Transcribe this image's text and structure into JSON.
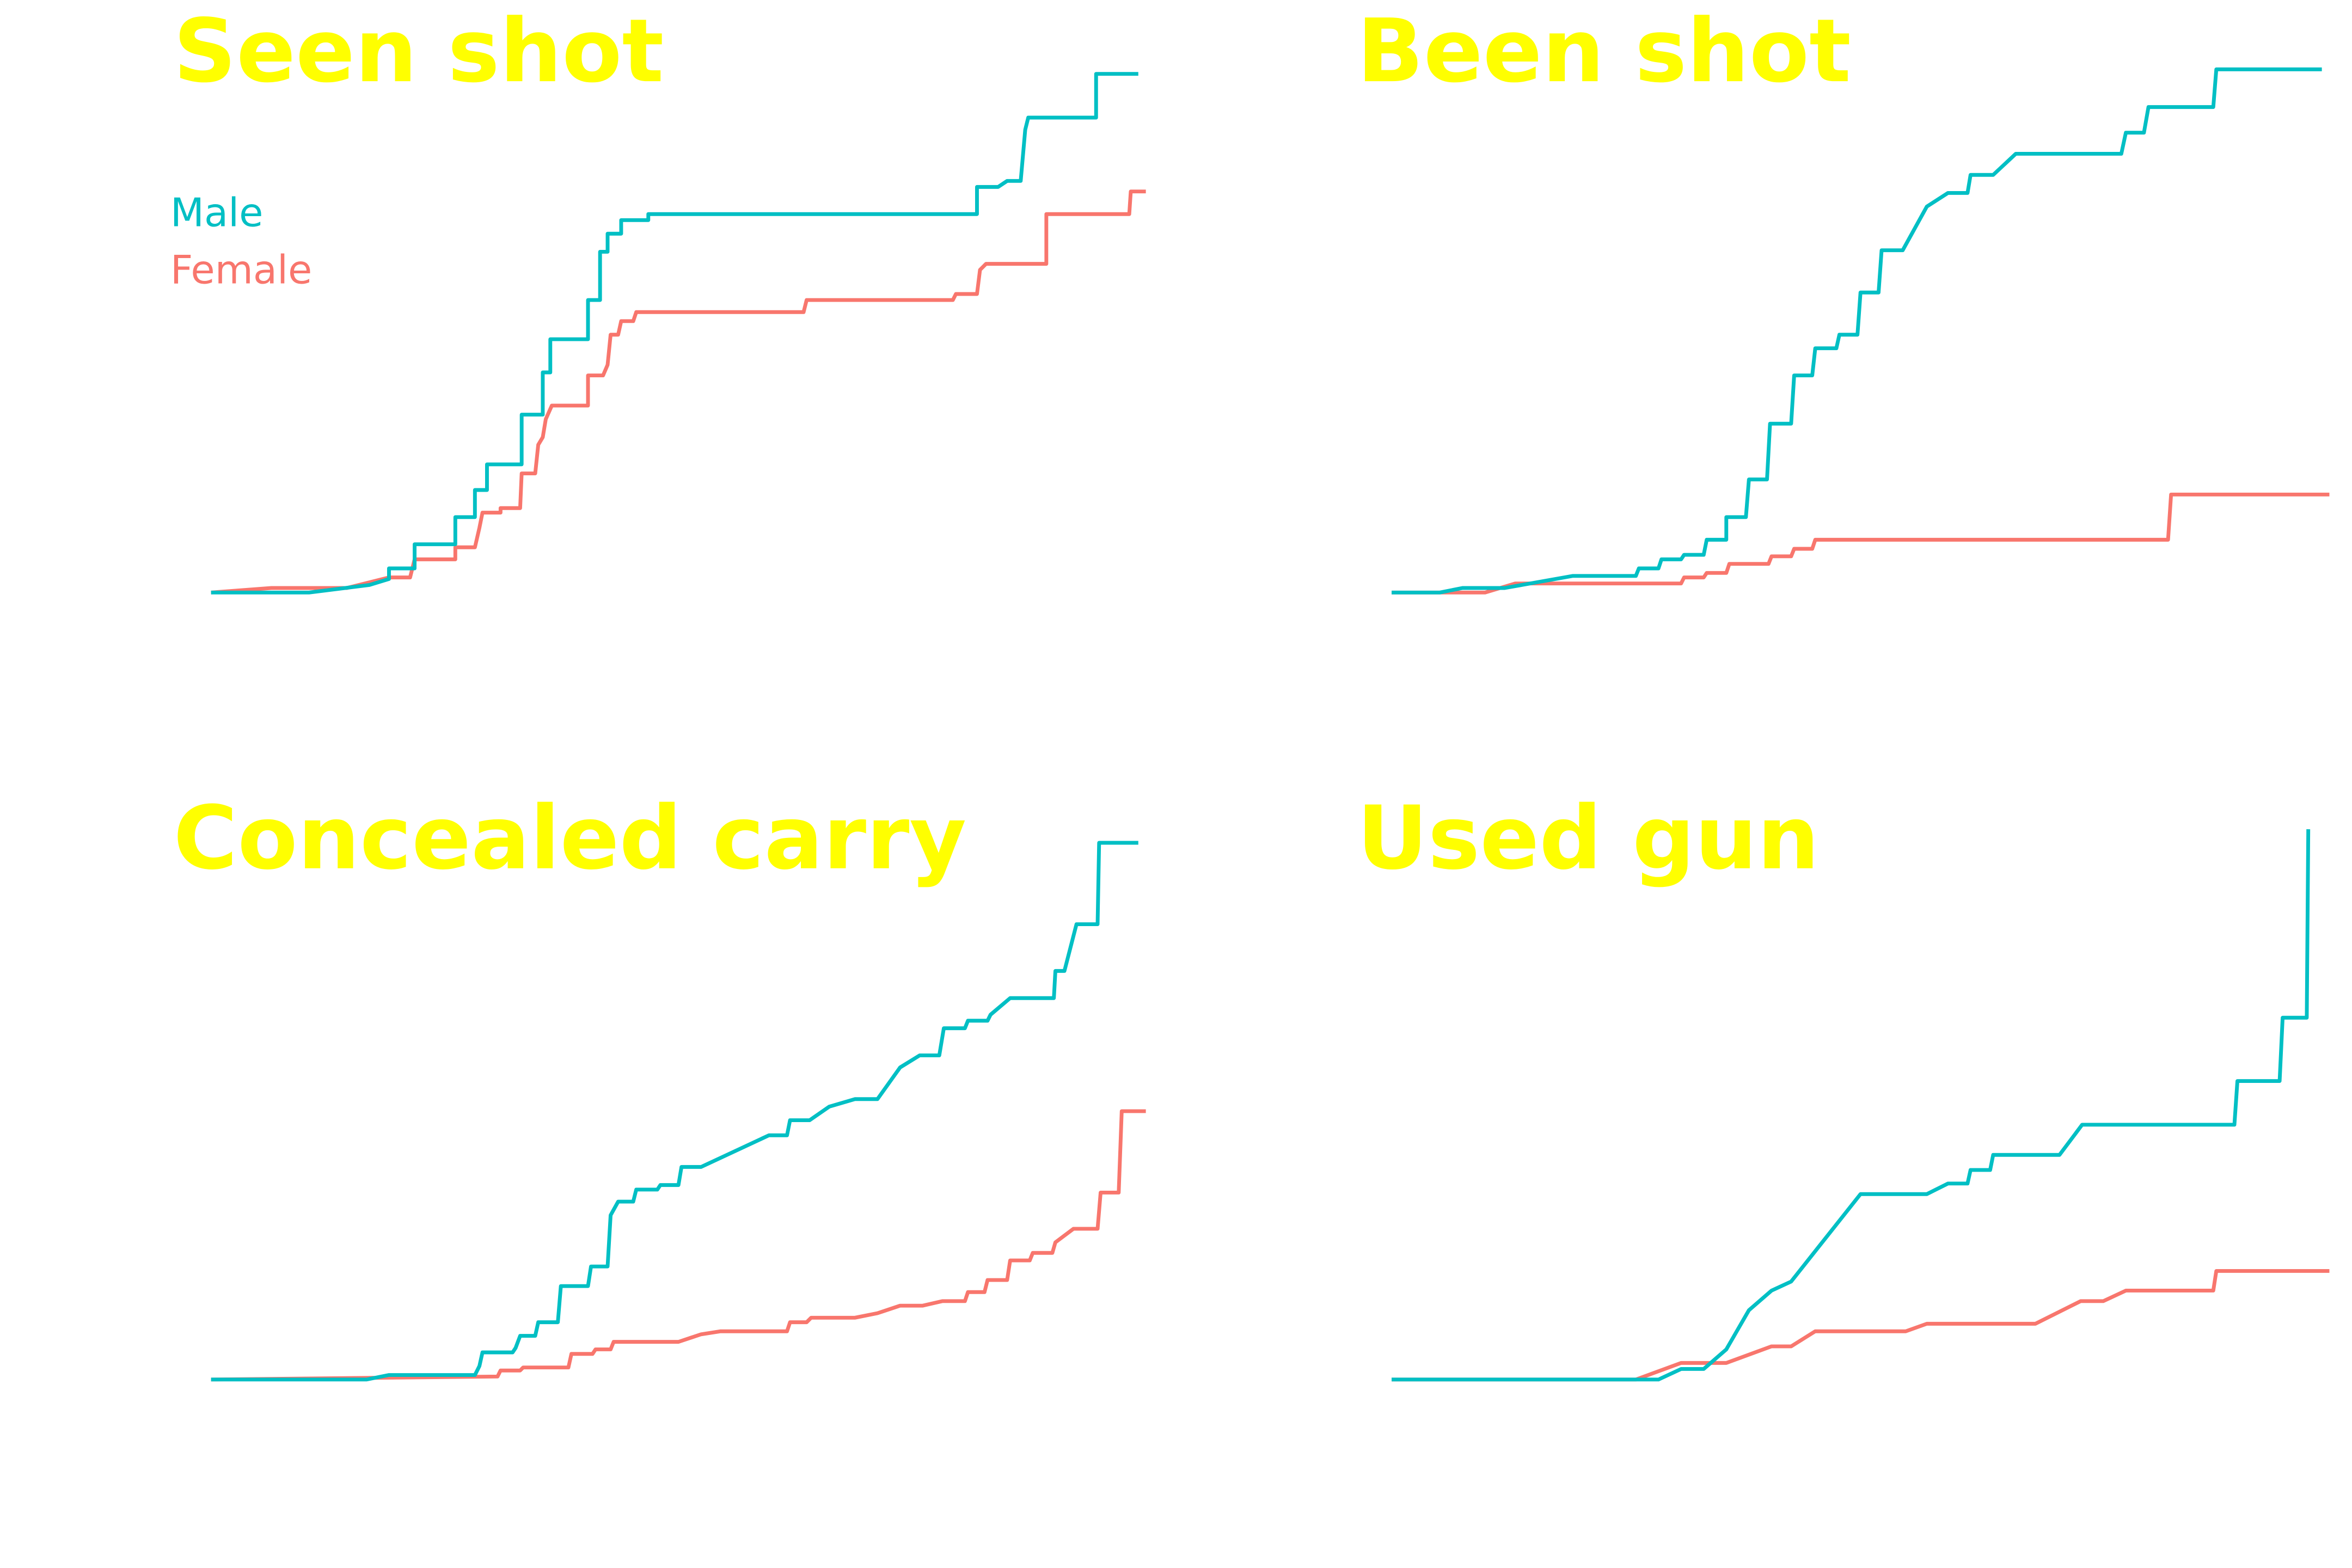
{
  "chart_data": [
    {
      "type": "line",
      "title": "Seen shot",
      "xlim": [
        0,
        622
      ],
      "ylim": [
        0,
        370
      ],
      "legend": "top-left",
      "series": [
        {
          "name": "Male",
          "color": "#00bfc4",
          "x": [
            0,
            65,
            105,
            118,
            118,
            135,
            135,
            162,
            162,
            175,
            175,
            183,
            183,
            206,
            206,
            220,
            220,
            225,
            225,
            250,
            250,
            258,
            258,
            263,
            263,
            272,
            272,
            290,
            290,
            508,
            508,
            522,
            528,
            537,
            540,
            542,
            587,
            587,
            615
          ],
          "values": [
            0,
            0,
            5,
            9,
            16,
            16,
            32,
            32,
            50,
            50,
            68,
            68,
            85,
            85,
            118,
            118,
            146,
            146,
            168,
            168,
            194,
            194,
            226,
            226,
            238,
            238,
            247,
            247,
            251,
            251,
            269,
            269,
            273,
            273,
            307,
            315,
            315,
            344,
            344
          ]
        },
        {
          "name": "Female",
          "color": "#f8766d",
          "x": [
            0,
            40,
            90,
            118,
            132,
            135,
            162,
            162,
            175,
            178,
            180,
            192,
            192,
            205,
            206,
            215,
            217,
            220,
            222,
            226,
            250,
            250,
            260,
            263,
            265,
            270,
            272,
            280,
            282,
            393,
            395,
            492,
            494,
            508,
            510,
            514,
            554,
            554,
            609,
            610,
            620
          ],
          "values": [
            0,
            3,
            3,
            10,
            10,
            22,
            22,
            30,
            30,
            43,
            53,
            53,
            56,
            56,
            79,
            79,
            98,
            103,
            115,
            124,
            124,
            144,
            144,
            151,
            171,
            171,
            180,
            180,
            186,
            186,
            194,
            194,
            198,
            198,
            214,
            218,
            218,
            251,
            251,
            266,
            266
          ]
        }
      ]
    },
    {
      "type": "line",
      "title": "Been shot",
      "xlim": [
        0,
        622
      ],
      "ylim": [
        0,
        370
      ],
      "series": [
        {
          "color": "#00bfc4",
          "x": [
            0,
            32,
            47,
            75,
            120,
            162,
            164,
            177,
            179,
            192,
            194,
            207,
            209,
            222,
            222,
            235,
            237,
            249,
            251,
            265,
            267,
            279,
            281,
            295,
            297,
            309,
            311,
            323,
            325,
            339,
            355,
            369,
            382,
            384,
            399,
            414,
            484,
            487,
            499,
            502,
            545,
            547,
            617
          ],
          "values": [
            0,
            0,
            3,
            3,
            11,
            11,
            16,
            16,
            22,
            22,
            25,
            25,
            35,
            35,
            50,
            50,
            75,
            75,
            112,
            112,
            144,
            144,
            162,
            162,
            171,
            171,
            199,
            199,
            227,
            227,
            256,
            265,
            265,
            277,
            277,
            291,
            291,
            305,
            305,
            322,
            322,
            347,
            347
          ]
        },
        {
          "color": "#f8766d",
          "x": [
            0,
            62,
            82,
            192,
            194,
            207,
            209,
            222,
            224,
            250,
            252,
            265,
            267,
            279,
            281,
            515,
            517,
            622
          ],
          "values": [
            0,
            0,
            6,
            6,
            10,
            10,
            13,
            13,
            19,
            19,
            24,
            24,
            29,
            29,
            35,
            35,
            65,
            65
          ]
        }
      ]
    },
    {
      "type": "line",
      "title": "Concealed carry",
      "xlim": [
        0,
        622
      ],
      "ylim": [
        0,
        370
      ],
      "series": [
        {
          "color": "#00bfc4",
          "x": [
            0,
            103,
            118,
            175,
            178,
            180,
            200,
            202,
            205,
            215,
            217,
            230,
            232,
            250,
            252,
            263,
            265,
            270,
            280,
            282,
            296,
            298,
            310,
            312,
            325,
            370,
            382,
            384,
            397,
            410,
            427,
            442,
            457,
            470,
            483,
            486,
            500,
            502,
            515,
            517,
            530,
            559,
            560,
            566,
            574,
            588,
            589,
            615
          ],
          "values": [
            0,
            0,
            3,
            3,
            9,
            18,
            18,
            21,
            29,
            29,
            38,
            38,
            62,
            62,
            75,
            75,
            109,
            118,
            118,
            126,
            126,
            129,
            129,
            141,
            141,
            162,
            162,
            172,
            172,
            181,
            186,
            186,
            207,
            215,
            215,
            233,
            233,
            238,
            238,
            242,
            253,
            253,
            271,
            271,
            302,
            302,
            356,
            356
          ]
        },
        {
          "color": "#f8766d",
          "x": [
            0,
            190,
            192,
            205,
            207,
            237,
            239,
            253,
            255,
            265,
            267,
            310,
            325,
            338,
            382,
            384,
            395,
            398,
            427,
            442,
            457,
            472,
            485,
            500,
            502,
            513,
            515,
            528,
            530,
            543,
            545,
            558,
            560,
            572,
            588,
            590,
            602,
            604,
            620
          ],
          "values": [
            0,
            2,
            6,
            6,
            8,
            8,
            17,
            17,
            20,
            20,
            25,
            25,
            30,
            32,
            32,
            38,
            38,
            41,
            41,
            44,
            49,
            49,
            52,
            52,
            58,
            58,
            66,
            66,
            79,
            79,
            84,
            84,
            91,
            100,
            100,
            124,
            124,
            178,
            178
          ]
        }
      ]
    },
    {
      "type": "line",
      "title": "Used gun",
      "xlim": [
        0,
        622
      ],
      "ylim": [
        0,
        370
      ],
      "series": [
        {
          "color": "#00bfc4",
          "x": [
            0,
            177,
            192,
            207,
            222,
            237,
            252,
            265,
            311,
            355,
            369,
            382,
            384,
            397,
            399,
            443,
            458,
            559,
            561,
            589,
            591,
            607,
            608
          ],
          "values": [
            0,
            0,
            7,
            7,
            20,
            46,
            59,
            65,
            123,
            123,
            130,
            130,
            139,
            139,
            149,
            149,
            169,
            169,
            198,
            198,
            240,
            240,
            365
          ]
        },
        {
          "color": "#f8766d",
          "x": [
            0,
            162,
            192,
            222,
            252,
            265,
            281,
            341,
            355,
            427,
            457,
            472,
            487,
            545,
            547,
            622
          ],
          "values": [
            0,
            0,
            11,
            11,
            22,
            22,
            32,
            32,
            37,
            37,
            52,
            52,
            59,
            59,
            72,
            72
          ]
        }
      ]
    }
  ]
}
